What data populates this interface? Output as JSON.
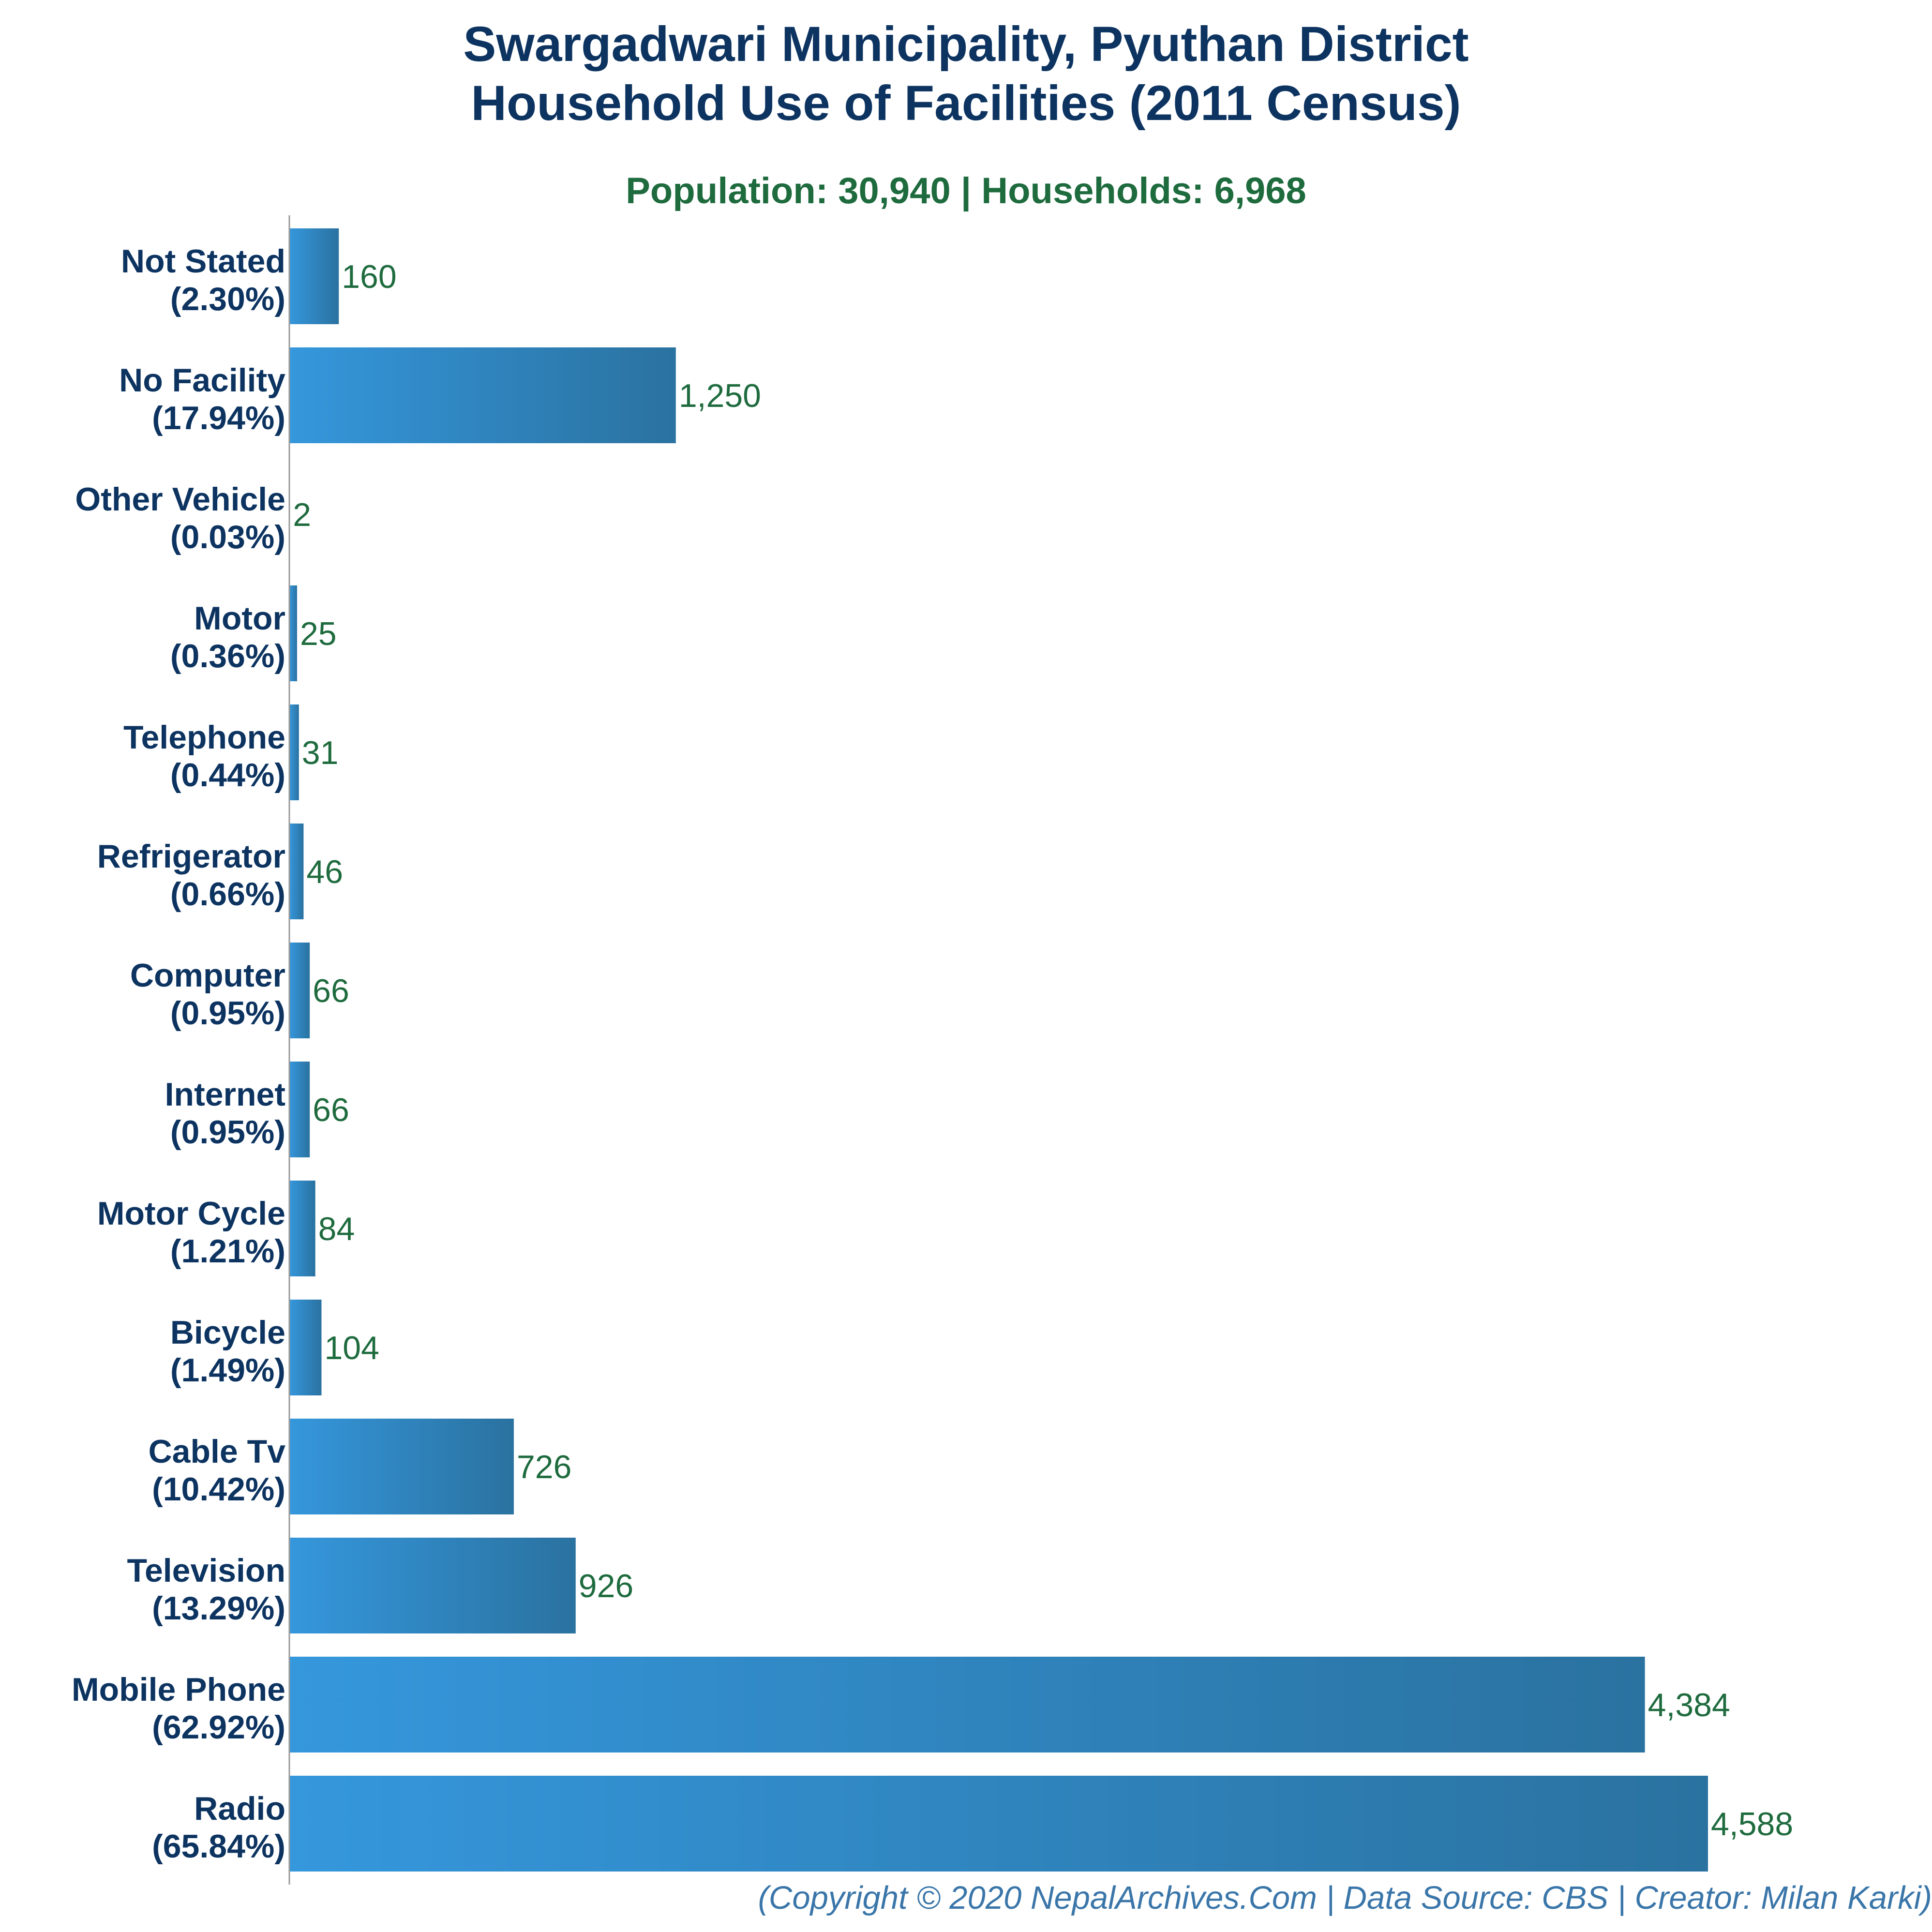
{
  "chart_data": {
    "type": "bar",
    "orientation": "horizontal",
    "title_lines": [
      "Swargadwari Municipality, Pyuthan District",
      "Household Use of Facilities (2011 Census)"
    ],
    "subtitle": "Population: 30,940 | Households: 6,968",
    "categories": [
      "Not Stated",
      "No Facility",
      "Other Vehicle",
      "Motor",
      "Telephone",
      "Refrigerator",
      "Computer",
      "Internet",
      "Motor Cycle",
      "Bicycle",
      "Cable Tv",
      "Television",
      "Mobile Phone",
      "Radio"
    ],
    "percent_labels": [
      "(2.30%)",
      "(17.94%)",
      "(0.03%)",
      "(0.36%)",
      "(0.44%)",
      "(0.66%)",
      "(0.95%)",
      "(0.95%)",
      "(1.21%)",
      "(1.49%)",
      "(10.42%)",
      "(13.29%)",
      "(62.92%)",
      "(65.84%)"
    ],
    "values": [
      160,
      1250,
      2,
      25,
      31,
      46,
      66,
      66,
      84,
      104,
      726,
      926,
      4384,
      4588
    ],
    "value_labels": [
      "160",
      "1,250",
      "2",
      "25",
      "31",
      "46",
      "66",
      "66",
      "84",
      "104",
      "726",
      "926",
      "4,384",
      "4,588"
    ],
    "xlim": [
      0,
      4588
    ],
    "grid": false,
    "legend": "none",
    "colors": {
      "bar_light": "#3597dc",
      "bar_dark": "#2a72a0",
      "title": "#0d3461",
      "subtitle": "#1e6b3e",
      "category_label": "#0d3461",
      "value_label": "#1e6b3e",
      "footer": "#3a76a9",
      "axis": "#999999"
    }
  },
  "footer": "(Copyright © 2020 NepalArchives.Com | Data Source: CBS | Creator: Milan Karki)"
}
